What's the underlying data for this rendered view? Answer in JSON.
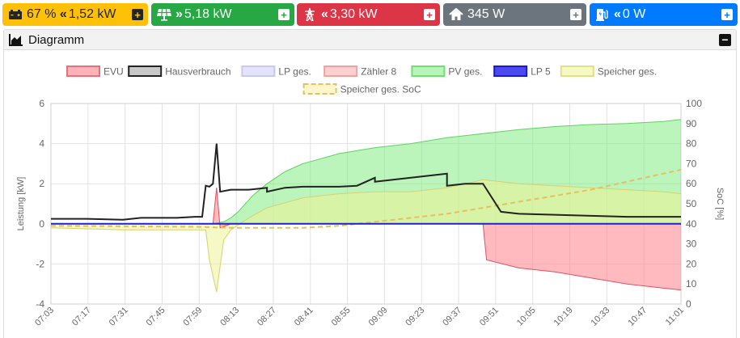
{
  "status_tiles": [
    {
      "name": "battery",
      "icon": "car-battery-icon",
      "arrow": "«",
      "value": "67 % « 1,52 kW"
    },
    {
      "name": "pv",
      "icon": "solar-panel-icon",
      "arrow": "»",
      "value": "5,18 kW"
    },
    {
      "name": "grid",
      "icon": "power-pylon-icon",
      "arrow": "«",
      "value": "3,30 kW"
    },
    {
      "name": "house",
      "icon": "home-icon",
      "arrow": "",
      "value": "345 W"
    },
    {
      "name": "chargepoint",
      "icon": "charging-station-icon",
      "arrow": "«",
      "value": "0 W"
    }
  ],
  "tiles": {
    "battery_text": "67 %",
    "battery_arrow": "«",
    "battery_power": "1,52 kW",
    "pv_arrow": "»",
    "pv_power": "5,18 kW",
    "grid_arrow": "«",
    "grid_power": "3,30 kW",
    "house_power": "345 W",
    "lp_arrow": "«",
    "lp_power": "0 W",
    "plus_symbol": "+"
  },
  "card": {
    "title": "Diagramm",
    "collapse_symbol": "−",
    "icon": "area-chart-icon"
  },
  "colors": {
    "battery": "#ffc107",
    "pv": "#28a745",
    "grid": "#dc3545",
    "house": "#6c757d",
    "chargepoint": "#007bff"
  },
  "chart_data": {
    "type": "area",
    "ylabel": "Leistung [kW]",
    "y2label": "SoC [%]",
    "ylim": [
      -4,
      6
    ],
    "y2lim": [
      0,
      100
    ],
    "yticks": [
      -4,
      -2,
      0,
      2,
      4,
      6
    ],
    "y2ticks": [
      0,
      10,
      20,
      30,
      40,
      50,
      60,
      70,
      80,
      90,
      100
    ],
    "x_ticks": [
      "07:03",
      "07:17",
      "07:31",
      "07:45",
      "07:59",
      "08:13",
      "08:27",
      "08:41",
      "08:55",
      "09:09",
      "09:23",
      "09:37",
      "09:51",
      "10:05",
      "10:19",
      "10:33",
      "10:47",
      "11:01"
    ],
    "grid": true,
    "legend_position": "top",
    "legend": [
      {
        "name": "EVU",
        "fill": "#ffb3b8",
        "stroke": "#e8707a",
        "dashed": false
      },
      {
        "name": "Hausverbrauch",
        "fill": "#c8c8c8",
        "stroke": "#222222",
        "dashed": false
      },
      {
        "name": "LP ges.",
        "fill": "#e4e4ff",
        "stroke": "#c8c8f0",
        "dashed": false
      },
      {
        "name": "Zähler 8",
        "fill": "#ffd0d0",
        "stroke": "#f0a0a0",
        "dashed": false
      },
      {
        "name": "PV ges.",
        "fill": "#b8f5b8",
        "stroke": "#70e070",
        "dashed": false
      },
      {
        "name": "LP 5",
        "fill": "#4a4af0",
        "stroke": "#1a1acc",
        "dashed": false
      },
      {
        "name": "Speicher ges.",
        "fill": "#f6f9c2",
        "stroke": "#dfe08a",
        "dashed": false
      },
      {
        "name": "Speicher ges. SoC",
        "fill": "#fff6cc",
        "stroke": "#e8c060",
        "dashed": true
      }
    ],
    "series": [
      {
        "name": "PV ges.",
        "axis": "left",
        "x": [
          0,
          4.5,
          4.8,
          5,
          5.2,
          5.4,
          5.6,
          6,
          6.5,
          7,
          8,
          9,
          10,
          11,
          12,
          13,
          14,
          15,
          16,
          17,
          17.5
        ],
        "values": [
          0,
          0,
          0.1,
          0.3,
          0.6,
          1.0,
          1.4,
          2.0,
          2.6,
          3.0,
          3.5,
          3.8,
          4.0,
          4.3,
          4.5,
          4.7,
          4.85,
          4.95,
          5.0,
          5.1,
          5.2
        ]
      },
      {
        "name": "Hausverbrauch",
        "axis": "left",
        "x": [
          0,
          1,
          2,
          2.5,
          3,
          3.5,
          4,
          4.2,
          4.3,
          4.4,
          4.5,
          4.6,
          4.7,
          5,
          5.5,
          6,
          6,
          6.5,
          7,
          8,
          8.5,
          9,
          9,
          10,
          11,
          11,
          11.5,
          12,
          12.5,
          13,
          14,
          15,
          16,
          17,
          17.5
        ],
        "values": [
          0.25,
          0.25,
          0.2,
          0.3,
          0.3,
          0.3,
          0.35,
          0.35,
          1.9,
          1.85,
          2.0,
          4.0,
          1.6,
          1.7,
          1.7,
          1.8,
          1.6,
          1.8,
          1.85,
          1.85,
          1.9,
          2.3,
          2.1,
          2.3,
          2.5,
          1.9,
          2.0,
          2.0,
          0.6,
          0.5,
          0.45,
          0.4,
          0.35,
          0.35,
          0.35
        ]
      },
      {
        "name": "EVU",
        "axis": "left",
        "x": [
          0,
          4.5,
          4.6,
          4.7,
          5,
          6,
          8,
          12,
          12.1,
          13,
          14,
          15,
          16,
          17,
          17.5
        ],
        "values": [
          0,
          0,
          1.8,
          -0.2,
          0,
          0,
          0,
          0,
          -1.8,
          -2.2,
          -2.4,
          -2.7,
          -3.0,
          -3.2,
          -3.3
        ]
      },
      {
        "name": "Speicher ges.",
        "axis": "left",
        "x": [
          0,
          2,
          4.3,
          4.4,
          4.6,
          4.8,
          5,
          5.5,
          6,
          7,
          8,
          9,
          10,
          11,
          12,
          13,
          14,
          15,
          16,
          17,
          17.5
        ],
        "values": [
          -0.2,
          -0.3,
          -0.3,
          -1.8,
          -3.4,
          -0.8,
          -0.3,
          0.3,
          0.8,
          1.3,
          1.5,
          1.6,
          1.6,
          1.8,
          2.2,
          2.0,
          1.9,
          1.8,
          1.7,
          1.6,
          1.5
        ]
      },
      {
        "name": "Speicher ges. SoC",
        "axis": "right",
        "x": [
          0,
          4,
          5,
          6,
          7,
          8,
          9,
          10,
          11,
          12,
          13,
          14,
          15,
          16,
          17,
          17.5
        ],
        "values": [
          39,
          38.5,
          38,
          38,
          38,
          39,
          41,
          43,
          45,
          48,
          51,
          54,
          57,
          61,
          65,
          67
        ]
      },
      {
        "name": "LP 5",
        "axis": "left",
        "x": [
          0,
          17.5
        ],
        "values": [
          0,
          0
        ]
      }
    ]
  }
}
